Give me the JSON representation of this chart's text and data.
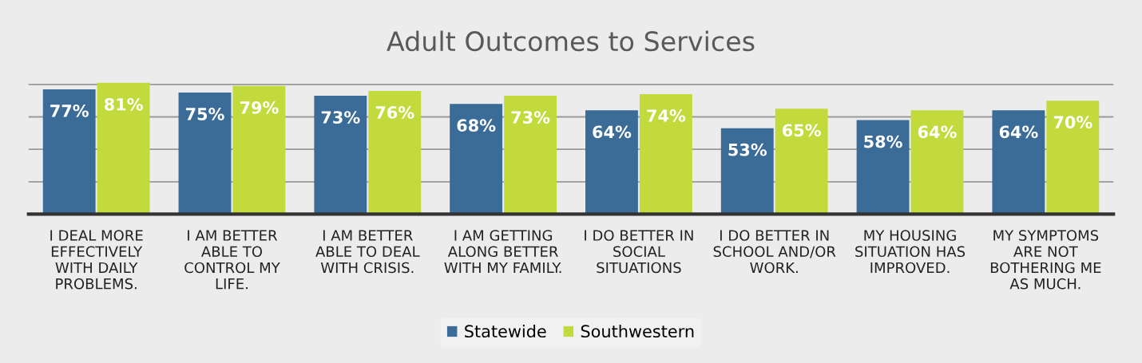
{
  "chart_data": {
    "type": "bar",
    "title": "Adult Outcomes to Services",
    "categories": [
      "I DEAL MORE\nEFFECTIVELY\nWITH DAILY\nPROBLEMS.",
      "I AM BETTER\nABLE TO\nCONTROL MY\nLIFE.",
      "I AM BETTER\nABLE TO DEAL\nWITH CRISIS.",
      "I AM GETTING\nALONG BETTER\nWITH MY FAMILY.",
      "I DO BETTER IN\nSOCIAL\nSITUATIONS",
      "I DO BETTER IN\nSCHOOL AND/OR\nWORK.",
      "MY HOUSING\nSITUATION HAS\nIMPROVED.",
      "MY SYMPTOMS\nARE NOT\nBOTHERING ME\nAS MUCH."
    ],
    "series": [
      {
        "name": "Statewide",
        "color": "#3b6b97",
        "values": [
          77,
          75,
          73,
          68,
          64,
          53,
          58,
          64
        ],
        "value_labels": [
          "77%",
          "75%",
          "73%",
          "68%",
          "64%",
          "53%",
          "58%",
          "64%"
        ]
      },
      {
        "name": "Southwestern",
        "color": "#c3da3c",
        "values": [
          81,
          79,
          76,
          73,
          74,
          65,
          64,
          70
        ],
        "value_labels": [
          "81%",
          "79%",
          "76%",
          "73%",
          "74%",
          "65%",
          "64%",
          "70%"
        ]
      }
    ],
    "yticks": [
      {
        "value": 0,
        "label": null
      },
      {
        "value": 20,
        "label": null
      },
      {
        "value": 40,
        "label": null
      },
      {
        "value": 60,
        "label": null
      },
      {
        "value": 80,
        "label": null
      }
    ],
    "tick_labels": "x",
    "grid": "y",
    "legend": "bottom"
  }
}
